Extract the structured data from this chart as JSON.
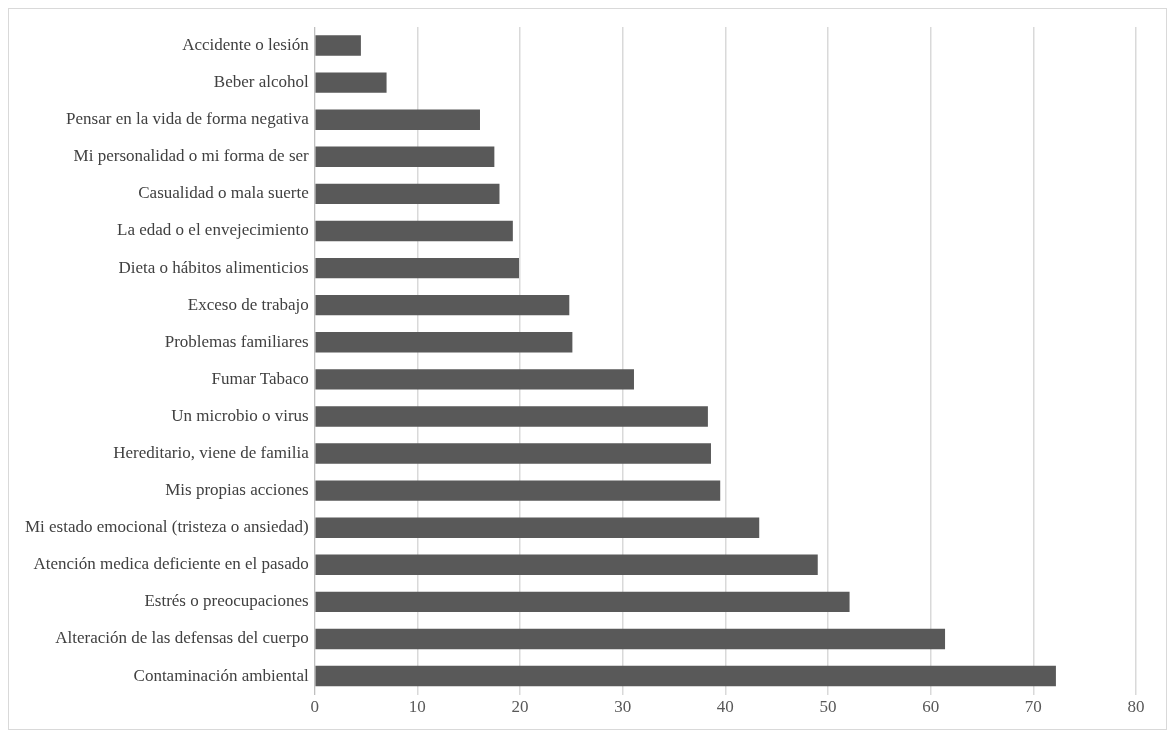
{
  "chart_data": {
    "type": "bar",
    "orientation": "horizontal",
    "categories": [
      "Accidente o lesión",
      "Beber alcohol",
      "Pensar en la vida de forma negativa",
      "Mi personalidad o mi forma de ser",
      "Casualidad o mala suerte",
      "La edad o el envejecimiento",
      "Dieta o hábitos alimenticios",
      "Exceso de trabajo",
      "Problemas familiares",
      "Fumar Tabaco",
      "Un microbio o virus",
      "Hereditario, viene de familia",
      "Mis propias acciones",
      "Mi estado emocional (tristeza o ansiedad)",
      "Atención medica deficiente en el pasado",
      "Estrés o preocupaciones",
      "Alteración de las defensas del cuerpo",
      "Contaminación ambiental"
    ],
    "values": [
      4.5,
      7.0,
      16.1,
      17.5,
      18.0,
      19.3,
      19.9,
      24.8,
      25.1,
      31.1,
      38.3,
      38.6,
      39.5,
      43.3,
      49.0,
      52.1,
      61.4,
      72.2
    ],
    "color": "#595959",
    "xlim": [
      0,
      80
    ],
    "xticks": [
      0,
      10,
      20,
      30,
      40,
      50,
      60,
      70,
      80
    ],
    "grid": "x",
    "legend": false
  }
}
